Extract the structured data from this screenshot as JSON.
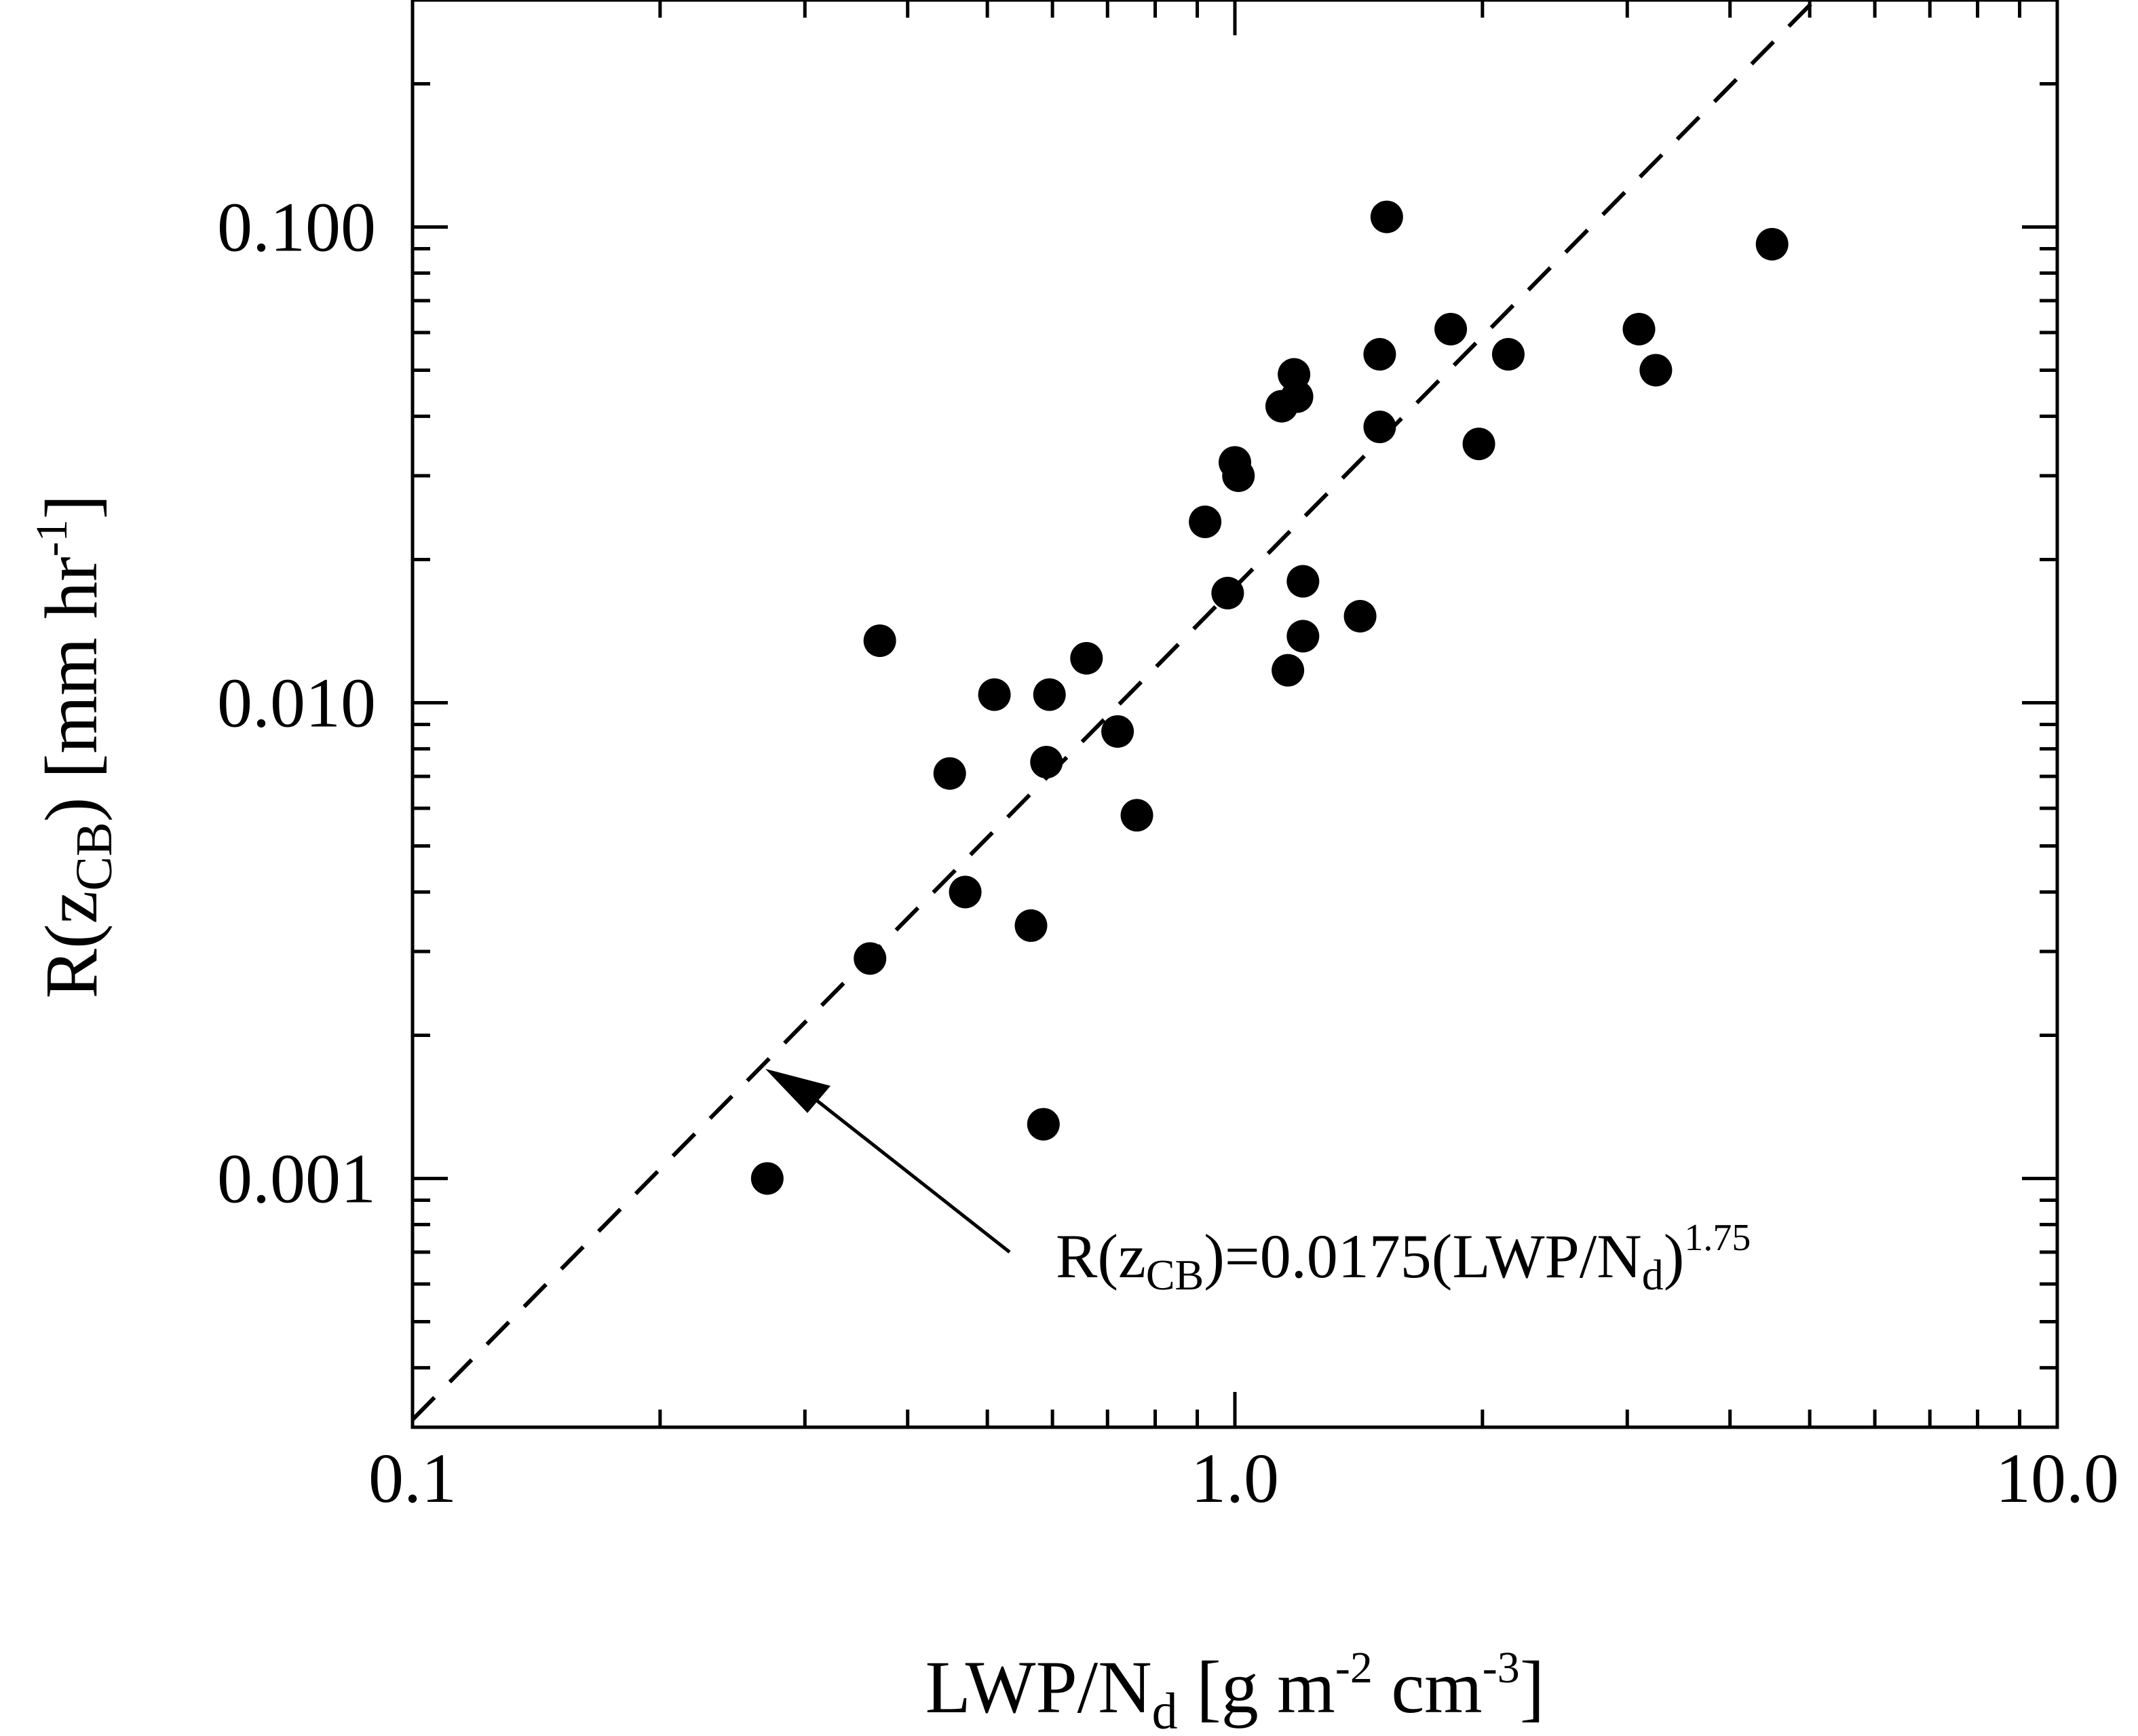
{
  "chart_data": {
    "type": "scatter",
    "x_scale": "log",
    "y_scale": "log",
    "xlim": [
      0.1,
      10.0
    ],
    "ylim": [
      0.0003,
      0.3
    ],
    "x_ticks": [
      {
        "value": 0.1,
        "label": "0.1"
      },
      {
        "value": 1.0,
        "label": "1.0"
      },
      {
        "value": 10.0,
        "label": "10.0"
      }
    ],
    "y_ticks": [
      {
        "value": 0.001,
        "label": "0.001"
      },
      {
        "value": 0.01,
        "label": "0.010"
      },
      {
        "value": 0.1,
        "label": "0.100"
      }
    ],
    "xlabel": {
      "main": "LWP/N",
      "sub": "d",
      "rest": " [g m",
      "sup1": "-2",
      "mid": " cm",
      "sup2": "-3",
      "end": "]"
    },
    "ylabel": {
      "main": "R(z",
      "sub": "CB",
      "rest": ") [mm hr",
      "sup": "-1",
      "end": "]"
    },
    "grid": false,
    "legend": "none",
    "fit_line": {
      "coefficient": 0.0175,
      "exponent": 1.75,
      "style": "dashed"
    },
    "annotation": {
      "part1": "R(z",
      "sub1": "CB",
      "part2": ")=0.0175(LWP/N",
      "sub2": "d",
      "part3": ")",
      "sup": "1.75",
      "arrow_to": {
        "x": 0.275,
        "y": 0.0017
      }
    },
    "points": [
      {
        "x": 0.27,
        "y": 0.001
      },
      {
        "x": 0.36,
        "y": 0.0029
      },
      {
        "x": 0.37,
        "y": 0.0135
      },
      {
        "x": 0.45,
        "y": 0.0071
      },
      {
        "x": 0.47,
        "y": 0.004
      },
      {
        "x": 0.51,
        "y": 0.0104
      },
      {
        "x": 0.565,
        "y": 0.0034
      },
      {
        "x": 0.585,
        "y": 0.0013
      },
      {
        "x": 0.59,
        "y": 0.0075
      },
      {
        "x": 0.595,
        "y": 0.0104
      },
      {
        "x": 0.66,
        "y": 0.0124
      },
      {
        "x": 0.72,
        "y": 0.0087
      },
      {
        "x": 0.76,
        "y": 0.0058
      },
      {
        "x": 0.92,
        "y": 0.024
      },
      {
        "x": 0.98,
        "y": 0.017
      },
      {
        "x": 1.0,
        "y": 0.032
      },
      {
        "x": 1.01,
        "y": 0.03
      },
      {
        "x": 1.14,
        "y": 0.042
      },
      {
        "x": 1.16,
        "y": 0.0117
      },
      {
        "x": 1.18,
        "y": 0.049
      },
      {
        "x": 1.19,
        "y": 0.044
      },
      {
        "x": 1.21,
        "y": 0.018
      },
      {
        "x": 1.21,
        "y": 0.0138
      },
      {
        "x": 1.42,
        "y": 0.0152
      },
      {
        "x": 1.5,
        "y": 0.038
      },
      {
        "x": 1.5,
        "y": 0.054
      },
      {
        "x": 1.53,
        "y": 0.105
      },
      {
        "x": 1.83,
        "y": 0.061
      },
      {
        "x": 1.98,
        "y": 0.035
      },
      {
        "x": 2.15,
        "y": 0.054
      },
      {
        "x": 3.1,
        "y": 0.061
      },
      {
        "x": 3.25,
        "y": 0.05
      },
      {
        "x": 4.5,
        "y": 0.092
      }
    ]
  }
}
